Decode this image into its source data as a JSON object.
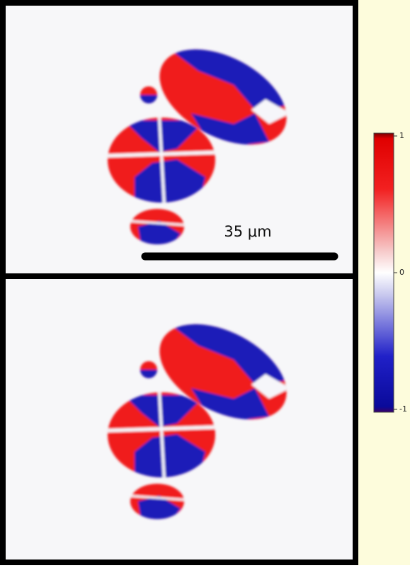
{
  "scale_bar": {
    "label": "35 μm"
  },
  "colorbar": {
    "lim": [
      -1,
      1
    ],
    "ticks": [
      1,
      0,
      -1
    ]
  }
}
